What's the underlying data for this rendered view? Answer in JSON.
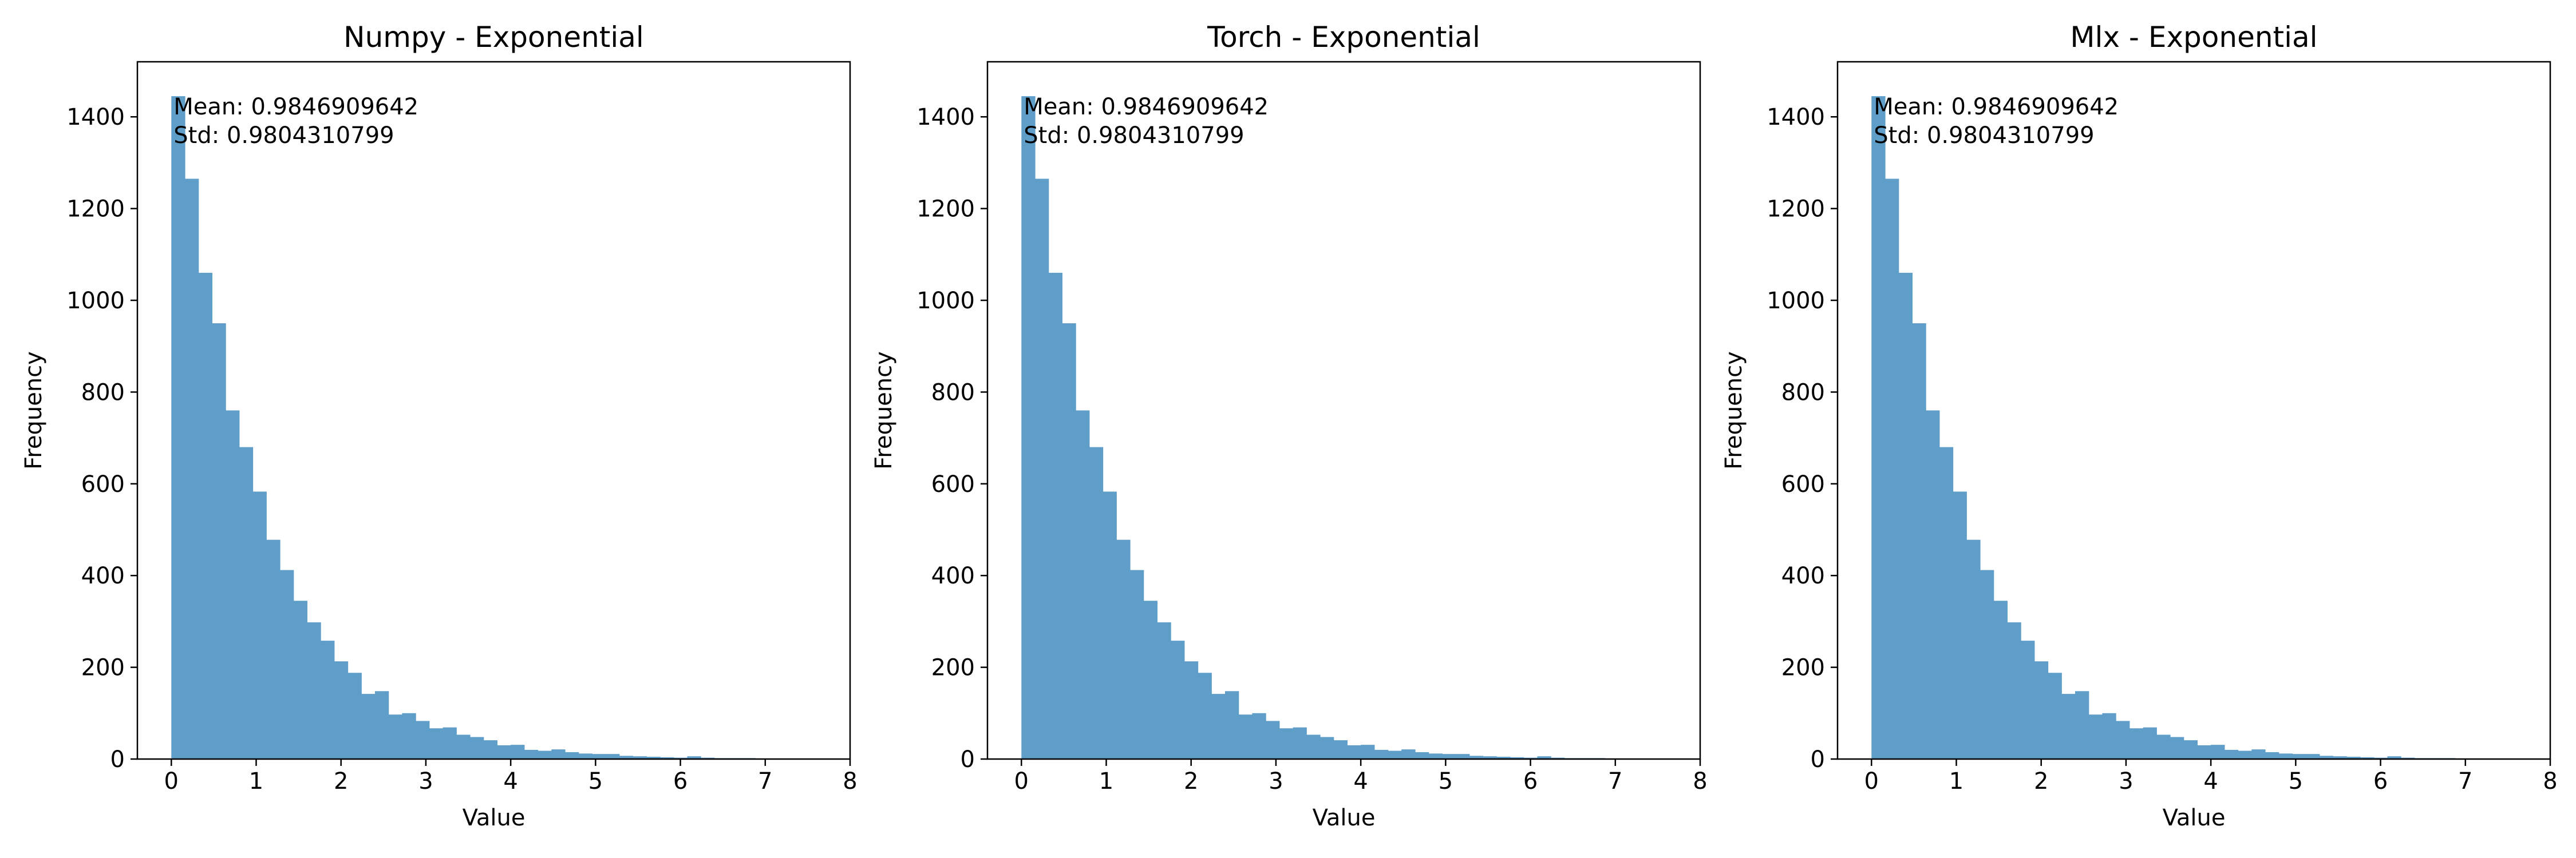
{
  "chart_data": [
    {
      "type": "bar",
      "title": "Numpy - Exponential",
      "xlabel": "Value",
      "ylabel": "Frequency",
      "annotations": [
        "Mean: 0.9846909642",
        "Std: 0.9804310799"
      ],
      "xlim": [
        -0.4,
        8.0
      ],
      "ylim": [
        0,
        1520
      ],
      "x_ticks": [
        0,
        1,
        2,
        3,
        4,
        5,
        6,
        7,
        8
      ],
      "y_ticks": [
        0,
        200,
        400,
        600,
        800,
        1000,
        1200,
        1400
      ],
      "grid": false,
      "bar_color": "#5f9ec9",
      "bin_start": 0.0,
      "bin_width": 0.16,
      "values": [
        1445,
        1265,
        1060,
        950,
        760,
        680,
        583,
        478,
        412,
        345,
        298,
        258,
        213,
        188,
        142,
        148,
        97,
        100,
        83,
        67,
        69,
        53,
        48,
        41,
        30,
        31,
        20,
        18,
        21,
        15,
        12,
        11,
        11,
        7,
        6,
        5,
        4,
        3,
        6,
        3,
        2,
        2,
        2,
        1,
        1,
        1,
        1,
        1,
        1
      ]
    },
    {
      "type": "bar",
      "title": "Torch - Exponential",
      "xlabel": "Value",
      "ylabel": "Frequency",
      "annotations": [
        "Mean: 0.9846909642",
        "Std: 0.9804310799"
      ],
      "xlim": [
        -0.4,
        8.0
      ],
      "ylim": [
        0,
        1520
      ],
      "x_ticks": [
        0,
        1,
        2,
        3,
        4,
        5,
        6,
        7,
        8
      ],
      "y_ticks": [
        0,
        200,
        400,
        600,
        800,
        1000,
        1200,
        1400
      ],
      "grid": false,
      "bar_color": "#5f9ec9",
      "bin_start": 0.0,
      "bin_width": 0.16,
      "values": [
        1445,
        1265,
        1060,
        950,
        760,
        680,
        583,
        478,
        412,
        345,
        298,
        258,
        213,
        188,
        142,
        148,
        97,
        100,
        83,
        67,
        69,
        53,
        48,
        41,
        30,
        31,
        20,
        18,
        21,
        15,
        12,
        11,
        11,
        7,
        6,
        5,
        4,
        3,
        6,
        3,
        2,
        2,
        2,
        1,
        1,
        1,
        1,
        1,
        1
      ]
    },
    {
      "type": "bar",
      "title": "Mlx - Exponential",
      "xlabel": "Value",
      "ylabel": "Frequency",
      "annotations": [
        "Mean: 0.9846909642",
        "Std: 0.9804310799"
      ],
      "xlim": [
        -0.4,
        8.0
      ],
      "ylim": [
        0,
        1520
      ],
      "x_ticks": [
        0,
        1,
        2,
        3,
        4,
        5,
        6,
        7,
        8
      ],
      "y_ticks": [
        0,
        200,
        400,
        600,
        800,
        1000,
        1200,
        1400
      ],
      "grid": false,
      "bar_color": "#5f9ec9",
      "bin_start": 0.0,
      "bin_width": 0.16,
      "values": [
        1445,
        1265,
        1060,
        950,
        760,
        680,
        583,
        478,
        412,
        345,
        298,
        258,
        213,
        188,
        142,
        148,
        97,
        100,
        83,
        67,
        69,
        53,
        48,
        41,
        30,
        31,
        20,
        18,
        21,
        15,
        12,
        11,
        11,
        7,
        6,
        5,
        4,
        3,
        6,
        3,
        2,
        2,
        2,
        1,
        1,
        1,
        1,
        1,
        1
      ]
    }
  ]
}
